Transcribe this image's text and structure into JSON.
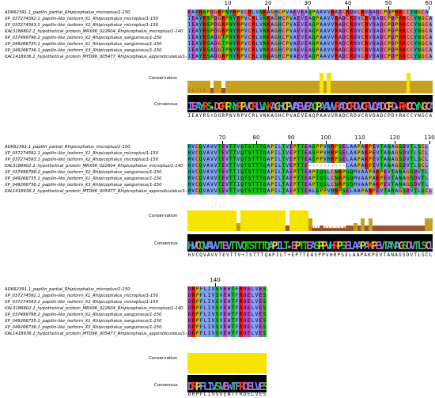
{
  "sequence_names": [
    "ADK62391.1_papilin_partial_Rhipicephalus_microplus/1-150",
    "XP_037274592.1_papilin-like_isoform_X1_Rhipicephalus_microplus/1-150",
    "XP_037274593.1_papilin-like_isoform_X2_Rhipicephalus_microplus/1-150",
    "KAL3186602.1_hypothetical_protein_MRX96_022604_Rhipicephalus_microplus/1-140",
    "XP_037499798.2_papilin-like_isoform_X2_Rhipicephalus_sanguineus/1-150",
    "XP_049266735.1_papilin-like_isoform_X1_Rhipicephalus_sanguineus/1-150",
    "XP_049266736.1_papilin-like_isoform_X3_Rhipicephalus_sanguineus/1-150",
    "KAL1418936.1_hypothetical_protein_MTD96_005477_Rhipicephalus_appendiculatus/1-150"
  ],
  "track_labels": {
    "conservation": "Conservation",
    "consensus": "Consensus"
  },
  "blocks": [
    {
      "ruler": [
        "10",
        "20",
        "30",
        "40",
        "50",
        "60"
      ],
      "rows": [
        "EAYRSPDGRPNYRPVCRLVNKAGHCPVAEVEAQPAAVVRADCRDVCRVDADCPDPRKCCYNGCA",
        "IEAYRSPDGRPNYRPVCRLVNKAGHCPVAEVEAQPAAVVRADCRDVCRVDADCPDPRKCCYNGCA",
        "IEAYRSPDGRPNYRPVCRLVNKAGHCPVAEVEAQPAAVVRADCRDVCRVDADCPDPRKCCYNGCA",
        "IEAYRSPDGRPNYRPVCRLVNKAGHCPVAEVEAQPAAVVRADCRDVCRVDADCPDPRKCCYNGCA",
        "IEAYRSADGTPNYRPVCRLVNKAGHCPVAEVEAQPAAVVRADCRDVCRVDADCPDPRKCCYNGCA",
        "IEAYRSADGTPNYRPVCRLVNKAGHCPVAEVEAQPAAVVRADCRDVCRVDADCPDPRKCCYNGCA",
        "IEAYRSADGTPNYRPVCRLVNKAGHCPVAEVEAQPAAVVRADCRDVCRVDADCPDPRKCCYNGCA",
        "IEAYRSADGRPNYRPVCRLVNKAGHCPVAEVEAQPAAVVRADCRDVCRVDADCPDPRKCCYNGCA"
      ],
      "conservation_digits": [
        "7",
        "6",
        "7",
        "5",
        "6"
      ],
      "consensus_logo": "IEAYRS+DGRPNYRPVCRLVNKAGHCPVAEVEAQPAAVVRADCRDVCRVDADCPD+RKCCYNGCA",
      "consensus_seq": "IEAYRS+DGRPNYRPVCRLVNKAGHCPVAEVEAQPAAVVRADCRDVCRVDADCPD+RKCCYNGCA"
    },
    {
      "ruler": [
        "70",
        "80",
        "90",
        "100",
        "110",
        "120",
        "130"
      ],
      "rows": [
        "HVCQVAVVTEVTTVQTSTTTQAPILTVEPTTEASPPVHRPSELAAPAKPEVTANAGSDVTLSCL",
        "HVCQVAVVTEVTTVQTSTTTQAPILTVEPTTEASPPVHRPSELAAPAKPEVTANAGSDVTLSCL",
        "HVCQVAVVTEVTTVQTSTTTQAPILTVEPTTEASPPVHRPSELAAPAKPEVTANAGSDVTLSCL",
        "HVCQVAVVTEVTTVQTSTTTQAPILTVEPTTE----------LAAPAKPEVTANAGSDVTLSCL",
        "HVCQVAVVTEVTTIQTSTTTQAPILTAEPTTEAPTQSLCNRPSQMVAAPAKPEVTANAGSDVTL",
        "HVCQVAVVTEVTTIQTSTTTQAPILTAEPTTEAPTQSLCNRPSQMVAAPAKPEVTANAGSDVTL",
        "HVCQVAVVTEVTTIQTSTTTQAPILTAEPTTEAPTQSLCNRPSQMVAAPAKPEVTANAGSDVTL",
        "HVCQVAVVTEVTTVQTSTTTQAPILTAEPTTEALSPPVHRPSELAAPAKPEVTANAGSDVTLSCL"
      ],
      "conservation_digits": [
        "5",
        "6",
        "3",
        "0",
        "1",
        "2",
        "3",
        "5",
        "1",
        "2",
        "3",
        "8",
        "9",
        "8",
        "3"
      ],
      "consensus_logo": "HVCQVAVVTEVTTVQTSTTTQAPILT+EPTTEASPPVHRPSELAAPAKPEVTANAGSDVTLSCL",
      "consensus_seq": "HVCQVAVVTEVTTV+TSTTTQAPILT+EPTTEASPPVHRPSELAAPAKPEVTANAGSDVTLSCL"
    },
    {
      "ruler": [
        "140"
      ],
      "rows": [
        "DRPFLIVSVEWTFRDELVES",
        "DRPFLIVSVEWTFRDELVES",
        "DRPFLIVSVEWTFRDELVES",
        "DRPFLIVSVEWTFRDELVES",
        "DRPFLIVSVEWTFRDELVES",
        "DRPFLIVSVEWTFRDELVES",
        "DRPFLIVSVEWTFRDELVES",
        "DRPFLIVSVEWTFRDELVES"
      ],
      "conservation_digits": [],
      "consensus_logo": "DRPFLIVSVEWTFRDELVES",
      "consensus_seq": "DRPFLIVSVEWTFRDELVES"
    }
  ],
  "colors": {
    "conservation_bar": "#f5e400",
    "conservation_low": "#a0522d",
    "consensus_bg": "#000000"
  }
}
